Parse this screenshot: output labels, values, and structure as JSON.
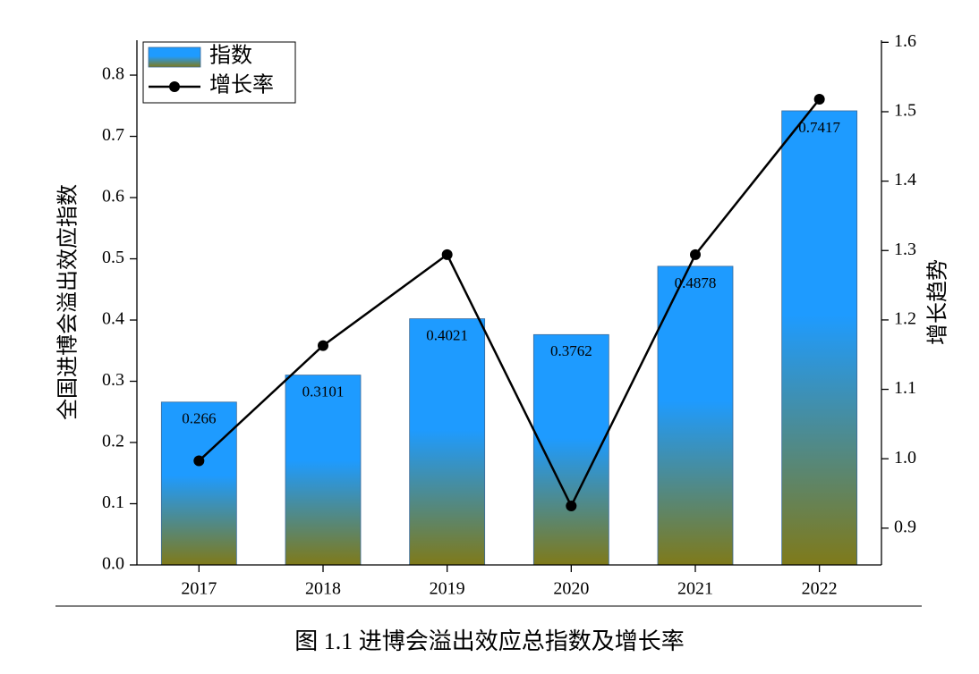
{
  "chart_data": {
    "type": "bar",
    "caption": "图 1.1 进博会溢出效应总指数及增长率",
    "y_label": "全国进博会溢出效应指数",
    "y2_label": "增长趋势",
    "categories": [
      "2017",
      "2018",
      "2019",
      "2020",
      "2021",
      "2022"
    ],
    "series": [
      {
        "name": "指数",
        "type": "bar",
        "color": "#1e9bff",
        "color_bottom": "#7f7a1a",
        "values": [
          0.266,
          0.3101,
          0.4021,
          0.3762,
          0.4878,
          0.7417
        ]
      },
      {
        "name": "增长率",
        "type": "line",
        "axis": "y2",
        "color": "#000000",
        "values": [
          0.997,
          1.163,
          1.294,
          0.932,
          1.294,
          1.518
        ]
      }
    ],
    "ylim": [
      0,
      0.857
    ],
    "yticks": [
      {
        "value": 0,
        "label": "0.0"
      },
      0.1,
      0.2,
      0.3,
      0.4,
      0.5,
      0.6,
      0.7,
      0.8
    ],
    "y2lim": [
      0.847,
      1.603
    ],
    "y2ticks": [
      0.9,
      {
        "value": 1,
        "label": "1.0"
      },
      1.1,
      1.2,
      1.3,
      1.4,
      1.5,
      1.6
    ],
    "legend": "upper-left"
  }
}
